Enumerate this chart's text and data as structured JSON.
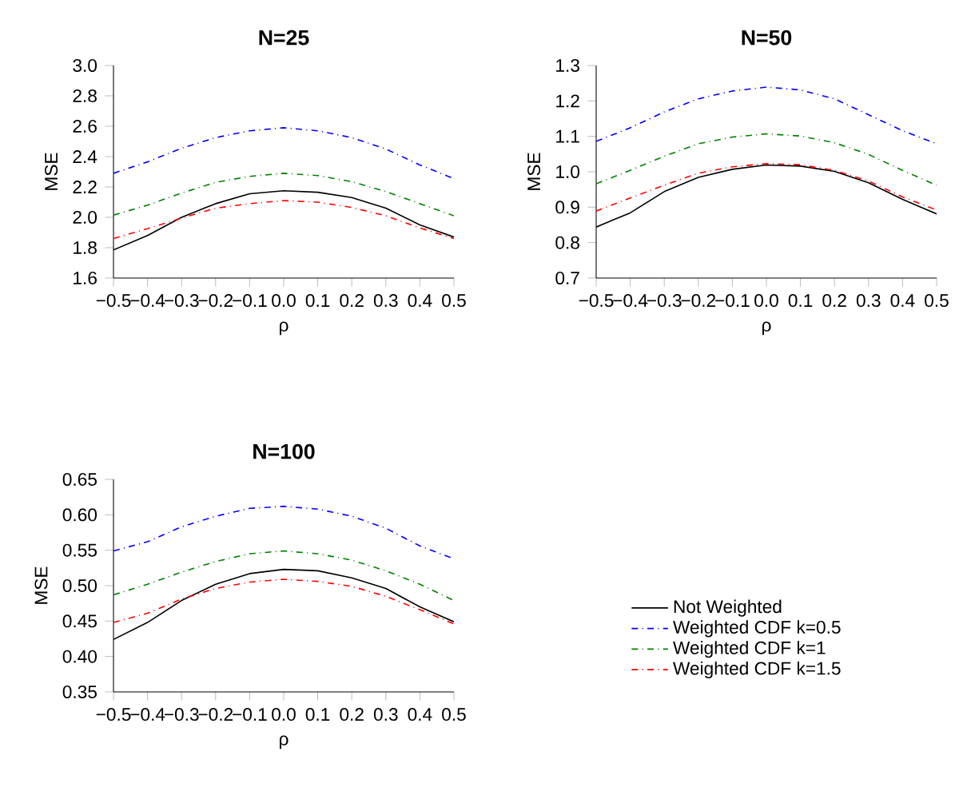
{
  "chart_data": [
    {
      "type": "line",
      "title": "N=25",
      "xlabel": "ρ",
      "ylabel": "MSE",
      "x": [
        -0.5,
        -0.4,
        -0.3,
        -0.2,
        -0.1,
        0.0,
        0.1,
        0.2,
        0.3,
        0.4,
        0.5
      ],
      "xlim": [
        -0.5,
        0.5
      ],
      "xticks": [
        {
          "value": -0.5,
          "label": "−0.5"
        },
        {
          "value": -0.4,
          "label": "−0.4"
        },
        {
          "value": -0.3,
          "label": "−0.3"
        },
        {
          "value": -0.2,
          "label": "−0.2"
        },
        {
          "value": -0.1,
          "label": "−0.1"
        },
        {
          "value": 0,
          "label": "0.0"
        },
        {
          "value": 0.1,
          "label": "0.1"
        },
        {
          "value": 0.2,
          "label": "0.2"
        },
        {
          "value": 0.3,
          "label": "0.3"
        },
        {
          "value": 0.4,
          "label": "0.4"
        },
        {
          "value": 0.5,
          "label": "0.5"
        }
      ],
      "ylim": [
        1.6,
        3.0
      ],
      "yticks": [
        {
          "value": 1.6,
          "label": "1.6"
        },
        {
          "value": 1.8,
          "label": "1.8"
        },
        {
          "value": 2.0,
          "label": "2.0"
        },
        {
          "value": 2.2,
          "label": "2.2"
        },
        {
          "value": 2.4,
          "label": "2.4"
        },
        {
          "value": 2.6,
          "label": "2.6"
        },
        {
          "value": 2.8,
          "label": "2.8"
        },
        {
          "value": 3.0,
          "label": "3.0"
        }
      ],
      "series": [
        {
          "color": "#000000",
          "line_style": "solid",
          "values": [
            1.785,
            1.88,
            2.0,
            2.09,
            2.155,
            2.175,
            2.165,
            2.13,
            2.06,
            1.95,
            1.87
          ]
        },
        {
          "color": "#0000ff",
          "line_style": "dashdot",
          "values": [
            2.29,
            2.365,
            2.455,
            2.525,
            2.57,
            2.59,
            2.57,
            2.525,
            2.45,
            2.345,
            2.255
          ]
        },
        {
          "color": "#008000",
          "line_style": "dashdot",
          "values": [
            2.015,
            2.08,
            2.16,
            2.23,
            2.27,
            2.29,
            2.275,
            2.235,
            2.17,
            2.09,
            2.01
          ]
        },
        {
          "color": "#ff0000",
          "line_style": "dashdot",
          "values": [
            1.86,
            1.925,
            1.995,
            2.06,
            2.09,
            2.11,
            2.1,
            2.065,
            2.01,
            1.93,
            1.86
          ]
        }
      ]
    },
    {
      "type": "line",
      "title": "N=50",
      "xlabel": "ρ",
      "ylabel": "MSE",
      "x": [
        -0.5,
        -0.4,
        -0.3,
        -0.2,
        -0.1,
        0.0,
        0.1,
        0.2,
        0.3,
        0.4,
        0.5
      ],
      "xlim": [
        -0.5,
        0.5
      ],
      "xticks": [
        {
          "value": -0.5,
          "label": "−0.5"
        },
        {
          "value": -0.4,
          "label": "−0.4"
        },
        {
          "value": -0.3,
          "label": "−0.3"
        },
        {
          "value": -0.2,
          "label": "−0.2"
        },
        {
          "value": -0.1,
          "label": "−0.1"
        },
        {
          "value": 0,
          "label": "0.0"
        },
        {
          "value": 0.1,
          "label": "0.1"
        },
        {
          "value": 0.2,
          "label": "0.2"
        },
        {
          "value": 0.3,
          "label": "0.3"
        },
        {
          "value": 0.4,
          "label": "0.4"
        },
        {
          "value": 0.5,
          "label": "0.5"
        }
      ],
      "ylim": [
        0.7,
        1.3
      ],
      "yticks": [
        {
          "value": 0.7,
          "label": "0.7"
        },
        {
          "value": 0.8,
          "label": "0.8"
        },
        {
          "value": 0.9,
          "label": "0.9"
        },
        {
          "value": 1.0,
          "label": "1.0"
        },
        {
          "value": 1.1,
          "label": "1.1"
        },
        {
          "value": 1.2,
          "label": "1.2"
        },
        {
          "value": 1.3,
          "label": "1.3"
        }
      ],
      "series": [
        {
          "color": "#000000",
          "line_style": "solid",
          "values": [
            0.844,
            0.884,
            0.944,
            0.984,
            1.007,
            1.019,
            1.016,
            1.001,
            0.969,
            0.922,
            0.881
          ]
        },
        {
          "color": "#0000ff",
          "line_style": "dashdot",
          "values": [
            1.086,
            1.124,
            1.169,
            1.206,
            1.228,
            1.239,
            1.231,
            1.206,
            1.161,
            1.116,
            1.079
          ]
        },
        {
          "color": "#008000",
          "line_style": "dashdot",
          "values": [
            0.966,
            1.004,
            1.044,
            1.079,
            1.098,
            1.107,
            1.101,
            1.082,
            1.049,
            1.004,
            0.962
          ]
        },
        {
          "color": "#ff0000",
          "line_style": "dashdot",
          "values": [
            0.889,
            0.926,
            0.962,
            0.996,
            1.014,
            1.023,
            1.02,
            1.004,
            0.974,
            0.929,
            0.892
          ]
        }
      ]
    },
    {
      "type": "line",
      "title": "N=100",
      "xlabel": "ρ",
      "ylabel": "MSE",
      "legend": "right",
      "x": [
        -0.5,
        -0.4,
        -0.3,
        -0.2,
        -0.1,
        0.0,
        0.1,
        0.2,
        0.3,
        0.4,
        0.5
      ],
      "xlim": [
        -0.5,
        0.5
      ],
      "xticks": [
        {
          "value": -0.5,
          "label": "−0.5"
        },
        {
          "value": -0.4,
          "label": "−0.4"
        },
        {
          "value": -0.3,
          "label": "−0.3"
        },
        {
          "value": -0.2,
          "label": "−0.2"
        },
        {
          "value": -0.1,
          "label": "−0.1"
        },
        {
          "value": 0,
          "label": "0.0"
        },
        {
          "value": 0.1,
          "label": "0.1"
        },
        {
          "value": 0.2,
          "label": "0.2"
        },
        {
          "value": 0.3,
          "label": "0.3"
        },
        {
          "value": 0.4,
          "label": "0.4"
        },
        {
          "value": 0.5,
          "label": "0.5"
        }
      ],
      "ylim": [
        0.35,
        0.65
      ],
      "yticks": [
        {
          "value": 0.35,
          "label": "0.35"
        },
        {
          "value": 0.4,
          "label": "0.40"
        },
        {
          "value": 0.45,
          "label": "0.45"
        },
        {
          "value": 0.5,
          "label": "0.50"
        },
        {
          "value": 0.55,
          "label": "0.55"
        },
        {
          "value": 0.6,
          "label": "0.60"
        },
        {
          "value": 0.65,
          "label": "0.65"
        }
      ],
      "series": [
        {
          "name": "Not Weighted",
          "color": "#000000",
          "line_style": "solid",
          "values": [
            0.424,
            0.448,
            0.479,
            0.502,
            0.517,
            0.523,
            0.521,
            0.511,
            0.496,
            0.47,
            0.449
          ]
        },
        {
          "name": "Weighted CDF k=0.5",
          "color": "#0000ff",
          "line_style": "dashdot",
          "values": [
            0.549,
            0.562,
            0.583,
            0.598,
            0.609,
            0.612,
            0.608,
            0.598,
            0.581,
            0.556,
            0.538
          ]
        },
        {
          "name": "Weighted CDF k=1",
          "color": "#008000",
          "line_style": "dashdot",
          "values": [
            0.487,
            0.502,
            0.519,
            0.534,
            0.545,
            0.549,
            0.545,
            0.536,
            0.521,
            0.502,
            0.479
          ]
        },
        {
          "name": "Weighted CDF k=1.5",
          "color": "#ff0000",
          "line_style": "dashdot",
          "values": [
            0.448,
            0.461,
            0.481,
            0.496,
            0.505,
            0.509,
            0.506,
            0.499,
            0.485,
            0.466,
            0.446
          ]
        }
      ]
    }
  ]
}
